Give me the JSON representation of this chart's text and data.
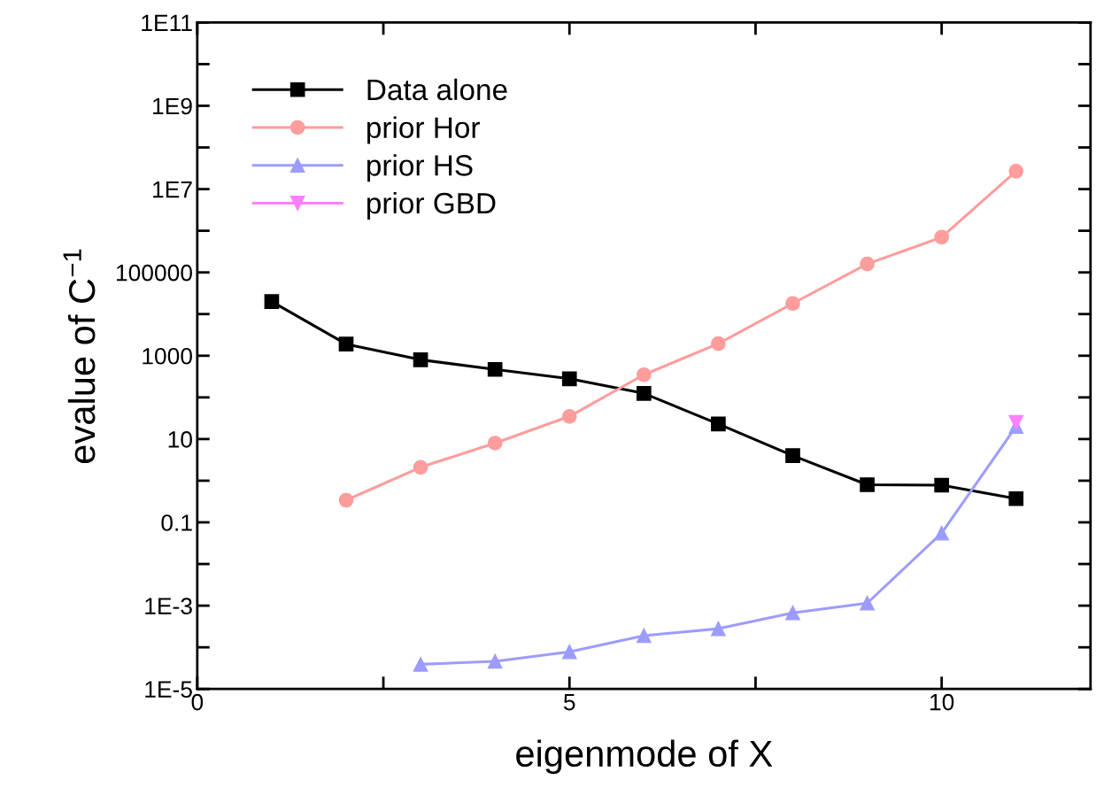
{
  "chart_data": {
    "type": "line",
    "xlabel": "eigenmode of X",
    "ylabel": "evalue of C$^{−1}$",
    "x": [
      1,
      2,
      3,
      4,
      5,
      6,
      7,
      8,
      9,
      10,
      11
    ],
    "series": [
      {
        "name": "Data alone",
        "color": "#000000",
        "marker": "square",
        "values": [
          20000,
          1900,
          800,
          470,
          280,
          125,
          23,
          4,
          0.8,
          0.78,
          0.37
        ]
      },
      {
        "name": "prior Hor",
        "color": "#ff9c9c",
        "marker": "circle",
        "values": [
          null,
          0.34,
          2.1,
          8,
          35,
          350,
          1950,
          18000,
          160000,
          700000,
          27000000
        ]
      },
      {
        "name": "prior HS",
        "color": "#9c9cff",
        "marker": "triangle",
        "values": [
          null,
          null,
          3.9e-05,
          4.6e-05,
          7.8e-05,
          0.00019,
          0.00028,
          0.00067,
          0.00115,
          0.055,
          20
        ]
      },
      {
        "name": "prior GBD",
        "color": "#ff80ff",
        "marker": "triangle_down",
        "values": [
          null,
          null,
          null,
          null,
          null,
          null,
          null,
          null,
          null,
          null,
          25
        ]
      }
    ],
    "log": "y",
    "xlim": [
      0,
      12
    ],
    "ylim": [
      1e-05,
      100000000000.0
    ],
    "xticks": [
      0,
      {
        "value": 2.5,
        "label": null
      },
      5,
      {
        "value": 7.5,
        "label": null
      },
      10
    ],
    "yticks": [
      {
        "value": 1e-05,
        "label": "1E-5"
      },
      {
        "value": 0.0001,
        "label": null
      },
      {
        "value": 0.001,
        "label": "1E-3"
      },
      {
        "value": 0.01,
        "label": null
      },
      0.1,
      {
        "value": 1,
        "label": null
      },
      10,
      {
        "value": 100,
        "label": null
      },
      1000,
      {
        "value": 10000,
        "label": null
      },
      100000,
      {
        "value": 1000000.0,
        "label": null
      },
      {
        "value": 10000000.0,
        "label": "1E7"
      },
      {
        "value": 100000000.0,
        "label": null
      },
      {
        "value": 1000000000.0,
        "label": "1E9"
      },
      {
        "value": 10000000000.0,
        "label": null
      },
      {
        "value": 100000000000.0,
        "label": "1E11"
      }
    ],
    "legend": "top left",
    "grid": false
  }
}
